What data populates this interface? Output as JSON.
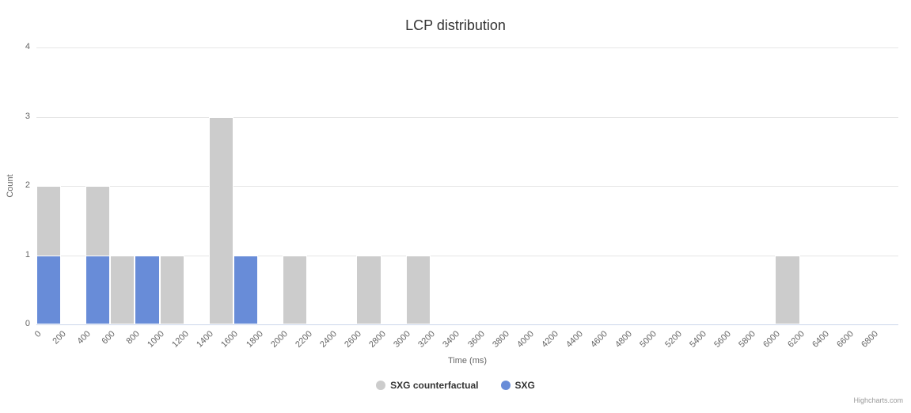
{
  "chart": {
    "credit_label": "Highcharts.com"
  },
  "chart_data": {
    "type": "bar",
    "title": "LCP distribution",
    "xlabel": "Time (ms)",
    "ylabel": "Count",
    "ylim": [
      0,
      4
    ],
    "yticks": [
      0,
      1,
      2,
      3,
      4
    ],
    "grid": "horizontal",
    "legend_position": "bottom",
    "categories": [
      "0",
      "200",
      "400",
      "600",
      "800",
      "1000",
      "1200",
      "1400",
      "1600",
      "1800",
      "2000",
      "2200",
      "2400",
      "2600",
      "2800",
      "3000",
      "3200",
      "3400",
      "3600",
      "3800",
      "4000",
      "4200",
      "4400",
      "4600",
      "4800",
      "5000",
      "5200",
      "5400",
      "5600",
      "5800",
      "6000",
      "6200",
      "6400",
      "6600",
      "6800"
    ],
    "series": [
      {
        "name": "SXG counterfactual",
        "color": "#cccccc",
        "values": [
          2,
          0,
          2,
          1,
          0,
          1,
          0,
          3,
          0,
          0,
          1,
          0,
          0,
          1,
          0,
          1,
          0,
          0,
          0,
          0,
          0,
          0,
          0,
          0,
          0,
          0,
          0,
          0,
          0,
          0,
          1,
          0,
          0,
          0,
          0
        ]
      },
      {
        "name": "SXG",
        "color": "#688cd8",
        "values": [
          1,
          0,
          1,
          0,
          1,
          0,
          0,
          0,
          1,
          0,
          0,
          0,
          0,
          0,
          0,
          0,
          0,
          0,
          0,
          0,
          0,
          0,
          0,
          0,
          0,
          0,
          0,
          0,
          0,
          0,
          0,
          0,
          0,
          0,
          0
        ]
      }
    ]
  }
}
